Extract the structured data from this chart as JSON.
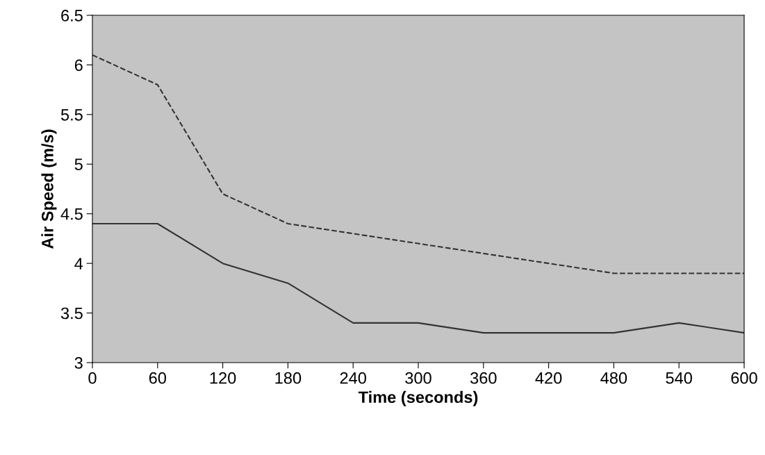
{
  "chart_data": {
    "type": "line",
    "xlabel": "Time (seconds)",
    "ylabel": "Air Speed (m/s)",
    "x": [
      0,
      60,
      120,
      180,
      240,
      300,
      360,
      420,
      480,
      540,
      600
    ],
    "series": [
      {
        "color": "#333333",
        "line_style": "dashed",
        "values": [
          6.1,
          5.8,
          4.7,
          4.4,
          4.3,
          4.2,
          4.1,
          4.0,
          3.9,
          3.9,
          3.9
        ]
      },
      {
        "color": "#333333",
        "line_style": "solid",
        "values": [
          4.4,
          4.4,
          4.0,
          3.8,
          3.4,
          3.4,
          3.3,
          3.3,
          3.3,
          3.4,
          3.3
        ]
      }
    ],
    "xlim": [
      0,
      600
    ],
    "xticks": [
      0,
      60,
      120,
      180,
      240,
      300,
      360,
      420,
      480,
      540,
      600
    ],
    "ylim": [
      3,
      6.5
    ],
    "yticks": [
      3,
      3.5,
      4,
      4.5,
      5,
      5.5,
      6,
      6.5
    ],
    "grid": false,
    "marker": "none"
  }
}
